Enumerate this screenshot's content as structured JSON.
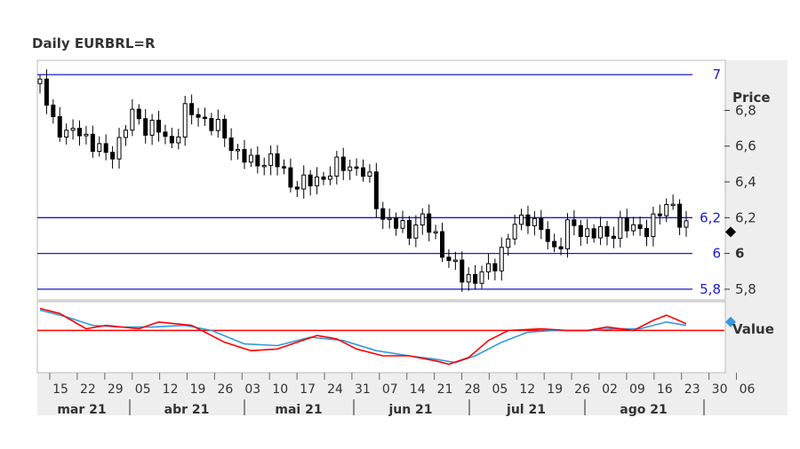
{
  "chart_data": {
    "title": "Daily EURBRL=R",
    "type": "candlestick",
    "price_axis": {
      "label": "Price",
      "ylim": [
        5.74,
        7.08
      ],
      "ticks": [
        "6,8",
        "6,6",
        "6,4",
        "6,2",
        "6",
        "5,8"
      ],
      "tick_values": [
        6.8,
        6.6,
        6.4,
        6.2,
        6.0,
        5.8
      ]
    },
    "horizontal_lines": [
      {
        "value": 7.0,
        "label": "7"
      },
      {
        "value": 6.2,
        "label": "6,2"
      },
      {
        "value": 6.0,
        "label": "6"
      },
      {
        "value": 5.8,
        "label": "5,8"
      }
    ],
    "last_value_marker": 6.12,
    "indicator": {
      "label": "Value",
      "reference_level": 0,
      "ylim": [
        -1.25,
        0.85
      ],
      "colors": {
        "fast": "#ff0000",
        "slow": "#3399dd",
        "reference": "#ff0000"
      },
      "fast_line": [
        [
          0,
          0.65
        ],
        [
          6,
          0.5
        ],
        [
          14,
          0.05
        ],
        [
          20,
          0.15
        ],
        [
          30,
          0.05
        ],
        [
          36,
          0.25
        ],
        [
          46,
          0.15
        ],
        [
          56,
          -0.35
        ],
        [
          64,
          -0.6
        ],
        [
          72,
          -0.55
        ],
        [
          84,
          -0.15
        ],
        [
          90,
          -0.25
        ],
        [
          96,
          -0.55
        ],
        [
          104,
          -0.75
        ],
        [
          112,
          -0.75
        ],
        [
          120,
          -0.9
        ],
        [
          124,
          -1.0
        ],
        [
          130,
          -0.8
        ],
        [
          136,
          -0.3
        ],
        [
          142,
          0.0
        ],
        [
          152,
          0.05
        ],
        [
          160,
          0.0
        ],
        [
          166,
          0.0
        ],
        [
          172,
          0.1
        ],
        [
          180,
          0.0
        ],
        [
          186,
          0.3
        ],
        [
          190,
          0.45
        ],
        [
          196,
          0.2
        ]
      ],
      "slow_line": [
        [
          0,
          0.6
        ],
        [
          8,
          0.4
        ],
        [
          16,
          0.15
        ],
        [
          24,
          0.1
        ],
        [
          34,
          0.1
        ],
        [
          44,
          0.15
        ],
        [
          52,
          0.0
        ],
        [
          62,
          -0.4
        ],
        [
          72,
          -0.45
        ],
        [
          82,
          -0.2
        ],
        [
          92,
          -0.3
        ],
        [
          102,
          -0.6
        ],
        [
          112,
          -0.75
        ],
        [
          120,
          -0.85
        ],
        [
          126,
          -0.95
        ],
        [
          132,
          -0.75
        ],
        [
          140,
          -0.35
        ],
        [
          148,
          -0.05
        ],
        [
          156,
          0.0
        ],
        [
          166,
          0.0
        ],
        [
          174,
          0.05
        ],
        [
          182,
          0.05
        ],
        [
          190,
          0.25
        ],
        [
          196,
          0.15
        ]
      ]
    },
    "x_ticks": [
      "15",
      "22",
      "29",
      "05",
      "12",
      "19",
      "26",
      "03",
      "10",
      "17",
      "24",
      "31",
      "07",
      "14",
      "21",
      "28",
      "05",
      "12",
      "19",
      "26",
      "02",
      "09",
      "16",
      "23",
      "30",
      "06"
    ],
    "months": [
      "mar 21",
      "abr 21",
      "mai 21",
      "jun 21",
      "jul 21",
      "ago 21"
    ]
  }
}
